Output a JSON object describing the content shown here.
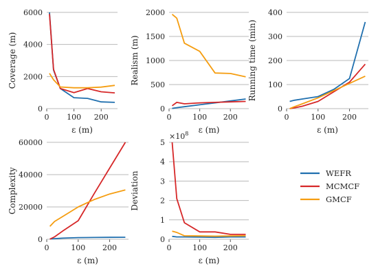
{
  "series_styles": [
    {
      "name": "WEFR",
      "color": "#1f6fae"
    },
    {
      "name": "MCMCF",
      "color": "#d62728"
    },
    {
      "name": "GMCF",
      "color": "#f59d10"
    }
  ],
  "chart_data": [
    {
      "type": "line",
      "xlabel": "ε (m)",
      "ylabel": "Coverage (m)",
      "xlim": [
        0,
        260
      ],
      "ylim": [
        0,
        6000
      ],
      "xticks": [
        0,
        100,
        200
      ],
      "yticks": [
        0,
        2000,
        4000,
        6000
      ],
      "grid": "horizontal",
      "series": [
        {
          "name": "WEFR",
          "x": [
            10,
            25,
            50,
            100,
            150,
            200,
            250
          ],
          "y": [
            6000,
            2400,
            1250,
            680,
            640,
            420,
            390
          ]
        },
        {
          "name": "MCMCF",
          "x": [
            10,
            25,
            50,
            100,
            150,
            200,
            250
          ],
          "y": [
            5900,
            2450,
            1250,
            1000,
            1250,
            1050,
            980
          ]
        },
        {
          "name": "GMCF",
          "x": [
            10,
            25,
            50,
            100,
            150,
            200,
            250
          ],
          "y": [
            2200,
            1800,
            1350,
            1300,
            1300,
            1340,
            1450
          ]
        }
      ]
    },
    {
      "type": "line",
      "xlabel": "ε (m)",
      "ylabel": "Realism (m)",
      "xlim": [
        0,
        260
      ],
      "ylim": [
        0,
        2000
      ],
      "xticks": [
        0,
        100,
        200
      ],
      "yticks": [
        0,
        500,
        1000,
        1500,
        2000
      ],
      "grid": "horizontal",
      "series": [
        {
          "name": "WEFR",
          "x": [
            10,
            25,
            50,
            100,
            150,
            200,
            250
          ],
          "y": [
            5,
            20,
            40,
            80,
            120,
            160,
            200
          ]
        },
        {
          "name": "MCMCF",
          "x": [
            10,
            25,
            50,
            100,
            150,
            200,
            250
          ],
          "y": [
            60,
            130,
            100,
            120,
            130,
            140,
            150
          ]
        },
        {
          "name": "GMCF",
          "x": [
            10,
            25,
            50,
            100,
            150,
            200,
            250
          ],
          "y": [
            1960,
            1880,
            1360,
            1190,
            740,
            730,
            660
          ]
        }
      ]
    },
    {
      "type": "line",
      "xlabel": "ε (m)",
      "ylabel": "Running time (min)",
      "xlim": [
        0,
        260
      ],
      "ylim": [
        0,
        400
      ],
      "xticks": [
        0,
        100,
        200
      ],
      "yticks": [
        0,
        100,
        200,
        300,
        400
      ],
      "grid": "horizontal",
      "series": [
        {
          "name": "WEFR",
          "x": [
            10,
            25,
            50,
            100,
            150,
            200,
            250
          ],
          "y": [
            30,
            35,
            40,
            50,
            80,
            125,
            360
          ]
        },
        {
          "name": "MCMCF",
          "x": [
            10,
            25,
            50,
            100,
            150,
            200,
            250
          ],
          "y": [
            0,
            3,
            10,
            30,
            70,
            110,
            185
          ]
        },
        {
          "name": "GMCF",
          "x": [
            10,
            25,
            50,
            100,
            150,
            200,
            250
          ],
          "y": [
            0,
            8,
            20,
            45,
            75,
            105,
            135
          ]
        }
      ]
    },
    {
      "type": "line",
      "xlabel": "ε (m)",
      "ylabel": "Complexity",
      "xlim": [
        0,
        260
      ],
      "ylim": [
        0,
        60000
      ],
      "xticks": [
        0,
        100,
        200
      ],
      "yticks": [
        0,
        20000,
        40000,
        60000
      ],
      "grid": "horizontal",
      "series": [
        {
          "name": "WEFR",
          "x": [
            10,
            25,
            50,
            100,
            150,
            200,
            250
          ],
          "y": [
            200,
            400,
            700,
            1000,
            1100,
            1200,
            1250
          ]
        },
        {
          "name": "MCMCF",
          "x": [
            10,
            25,
            50,
            100,
            150,
            200,
            250
          ],
          "y": [
            100,
            1500,
            5000,
            11500,
            28000,
            44000,
            61000
          ]
        },
        {
          "name": "GMCF",
          "x": [
            10,
            25,
            50,
            100,
            150,
            200,
            250
          ],
          "y": [
            8000,
            11000,
            14000,
            20000,
            24500,
            28000,
            30500
          ]
        }
      ]
    },
    {
      "type": "line",
      "xlabel": "ε (m)",
      "ylabel": "Deviation",
      "axis_multiplier": "×10",
      "axis_multiplier_exp": "8",
      "xlim": [
        0,
        260
      ],
      "ylim": [
        0,
        5
      ],
      "xticks": [
        0,
        100,
        200
      ],
      "yticks": [
        0,
        1,
        2,
        3,
        4,
        5
      ],
      "grid": "horizontal",
      "series": [
        {
          "name": "WEFR",
          "x": [
            10,
            25,
            50,
            100,
            150,
            200,
            250
          ],
          "y": [
            0.15,
            0.12,
            0.12,
            0.11,
            0.1,
            0.12,
            0.12
          ]
        },
        {
          "name": "MCMCF",
          "x": [
            10,
            25,
            50,
            100,
            150,
            200,
            250
          ],
          "y": [
            5.0,
            2.1,
            0.85,
            0.38,
            0.38,
            0.25,
            0.25
          ]
        },
        {
          "name": "GMCF",
          "x": [
            10,
            25,
            50,
            100,
            150,
            200,
            250
          ],
          "y": [
            0.42,
            0.35,
            0.18,
            0.17,
            0.16,
            0.17,
            0.18
          ]
        }
      ]
    }
  ]
}
